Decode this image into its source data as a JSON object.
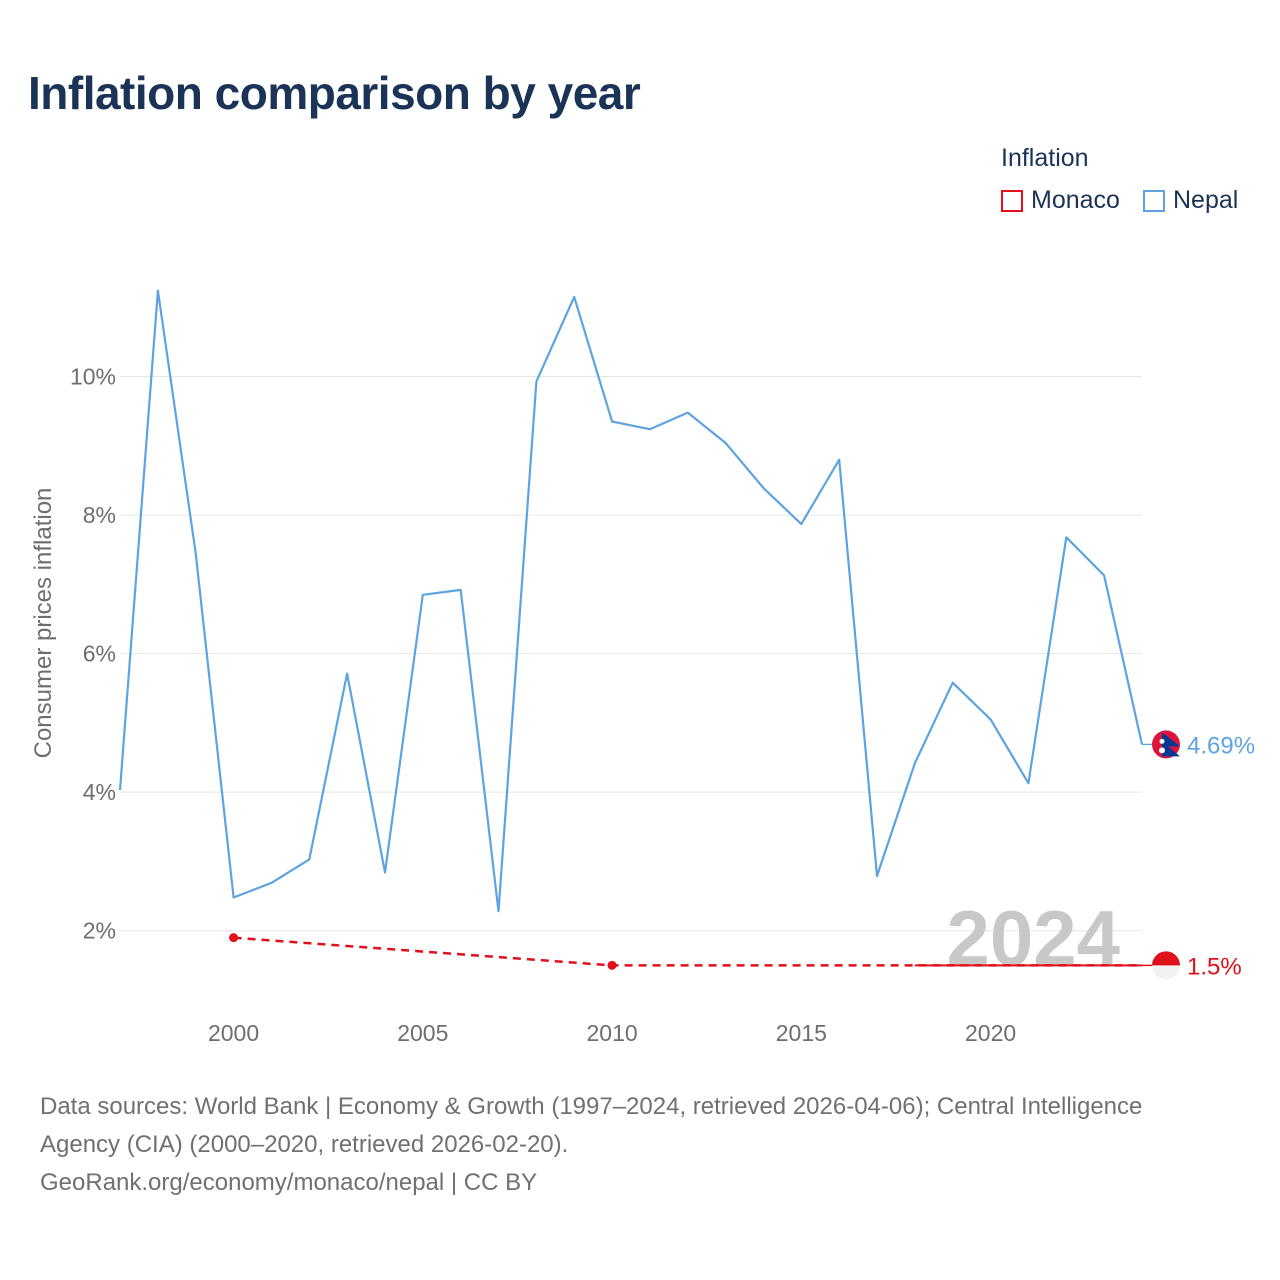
{
  "title": "Inflation comparison by year",
  "legend": {
    "title": "Inflation",
    "items": [
      {
        "label": "Monaco",
        "color": "#e0111b"
      },
      {
        "label": "Nepal",
        "color": "#5ea3e0"
      }
    ]
  },
  "chart_data": {
    "type": "line",
    "title": "Inflation comparison by year",
    "ylabel": "Consumer prices inflation",
    "xlabel": "",
    "xlim": [
      1997,
      2024
    ],
    "ylim": [
      1.0,
      12.0
    ],
    "x_ticks": [
      2000,
      2005,
      2010,
      2015,
      2020
    ],
    "y_ticks": [
      {
        "value": 2,
        "label": "2%"
      },
      {
        "value": 4,
        "label": "4%"
      },
      {
        "value": 6,
        "label": "6%"
      },
      {
        "value": 8,
        "label": "8%"
      },
      {
        "value": 10,
        "label": "10%"
      }
    ],
    "grid": true,
    "year_watermark": "2024",
    "series": [
      {
        "name": "Nepal",
        "color": "#5ea3e0",
        "style": "solid",
        "end_label": "4.69%",
        "x": [
          1997,
          1998,
          1999,
          2000,
          2001,
          2002,
          2003,
          2004,
          2005,
          2006,
          2007,
          2008,
          2009,
          2010,
          2011,
          2012,
          2013,
          2014,
          2015,
          2016,
          2017,
          2018,
          2019,
          2020,
          2021,
          2022,
          2023,
          2024
        ],
        "values": [
          4.03,
          11.24,
          7.45,
          2.48,
          2.69,
          3.03,
          5.71,
          2.84,
          6.85,
          6.92,
          2.28,
          9.93,
          11.15,
          9.35,
          9.24,
          9.48,
          9.04,
          8.39,
          7.87,
          8.8,
          2.79,
          4.42,
          5.58,
          5.05,
          4.13,
          7.68,
          7.13,
          4.69
        ]
      },
      {
        "name": "Monaco",
        "color": "#e0111b",
        "style": "dashed",
        "end_label": "1.5%",
        "x": [
          2000,
          2010,
          2018,
          2024
        ],
        "values": [
          1.9,
          1.5,
          1.5,
          1.5
        ],
        "markers": [
          2000,
          2010
        ]
      }
    ]
  },
  "footer": {
    "line1": "Data sources: World Bank | Economy & Growth (1997–2024, retrieved 2026-04-06); Central Intelligence",
    "line2": "Agency (CIA) (2000–2020, retrieved 2026-02-20).",
    "line3": "GeoRank.org/economy/monaco/nepal | CC BY"
  }
}
